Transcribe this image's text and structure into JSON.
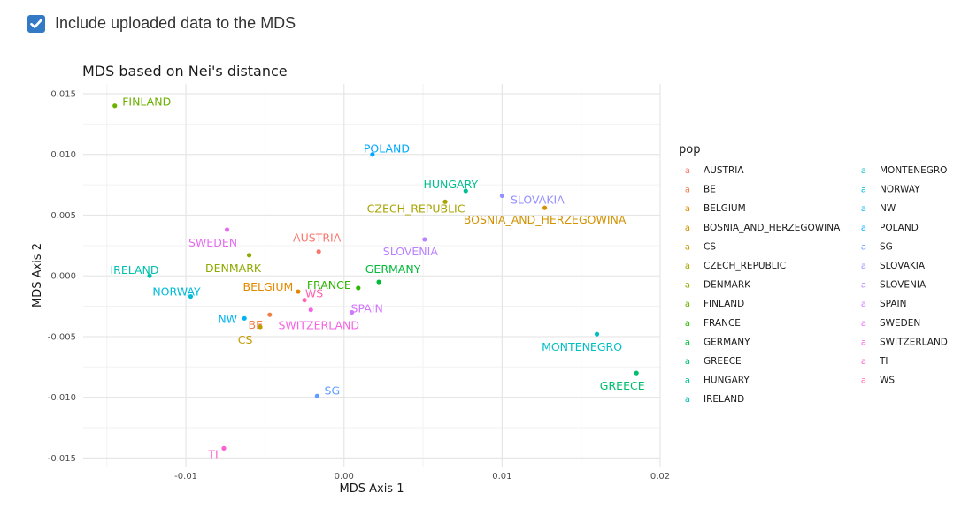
{
  "options": {
    "include_uploaded_label": "Include uploaded data to the MDS",
    "include_uploaded_checked": true
  },
  "chart_data": {
    "type": "scatter",
    "title": "MDS based on Nei's distance",
    "xlabel": "MDS Axis 1",
    "ylabel": "MDS Axis 2",
    "xlim": [
      -0.0165,
      0.02
    ],
    "ylim": [
      -0.0157,
      0.0158
    ],
    "x_ticks": [
      -0.01,
      0.0,
      0.01,
      0.02
    ],
    "x_tick_labels": [
      "-0.01",
      "0.00",
      "0.01",
      "0.02"
    ],
    "y_ticks": [
      -0.015,
      -0.01,
      -0.005,
      0.0,
      0.005,
      0.01,
      0.015
    ],
    "y_tick_labels": [
      "-0.015",
      "-0.010",
      "-0.005",
      "0.000",
      "0.005",
      "0.010",
      "0.015"
    ],
    "grid": true,
    "legend_title": "pop",
    "legend_placement": "right",
    "points": [
      {
        "label": "AUSTRIA",
        "x": -0.0016,
        "y": 0.002,
        "color": "#F8766D"
      },
      {
        "label": "BE",
        "x": -0.0047,
        "y": -0.0032,
        "color": "#EF7F49"
      },
      {
        "label": "BELGIUM",
        "x": -0.0029,
        "y": -0.0013,
        "color": "#E38900"
      },
      {
        "label": "BOSNIA_AND_HERZEGOWINA",
        "x": 0.0127,
        "y": 0.0056,
        "color": "#D39200"
      },
      {
        "label": "CS",
        "x": -0.0053,
        "y": -0.0042,
        "color": "#C09B00"
      },
      {
        "label": "CZECH_REPUBLIC",
        "x": 0.0064,
        "y": 0.0061,
        "color": "#A9A400"
      },
      {
        "label": "DENMARK",
        "x": -0.006,
        "y": 0.0017,
        "color": "#8EAB00"
      },
      {
        "label": "FINLAND",
        "x": -0.0145,
        "y": 0.014,
        "color": "#6BB100"
      },
      {
        "label": "FRANCE",
        "x": 0.0009,
        "y": -0.001,
        "color": "#2EB600"
      },
      {
        "label": "GERMANY",
        "x": 0.0022,
        "y": -0.0005,
        "color": "#00BA38"
      },
      {
        "label": "GREECE",
        "x": 0.0185,
        "y": -0.008,
        "color": "#00BD6D"
      },
      {
        "label": "HUNGARY",
        "x": 0.0077,
        "y": 0.007,
        "color": "#00BF91"
      },
      {
        "label": "IRELAND",
        "x": -0.0123,
        "y": 0.0,
        "color": "#00C0AF"
      },
      {
        "label": "MONTENEGRO",
        "x": 0.016,
        "y": -0.0048,
        "color": "#00BFC4"
      },
      {
        "label": "NORWAY",
        "x": -0.0097,
        "y": -0.0017,
        "color": "#00BBD9"
      },
      {
        "label": "NW",
        "x": -0.0063,
        "y": -0.0035,
        "color": "#00B4EF"
      },
      {
        "label": "POLAND",
        "x": 0.0018,
        "y": 0.01,
        "color": "#00A9FF"
      },
      {
        "label": "SG",
        "x": -0.0017,
        "y": -0.0099,
        "color": "#619CFF"
      },
      {
        "label": "SLOVAKIA",
        "x": 0.01,
        "y": 0.0066,
        "color": "#9590FF"
      },
      {
        "label": "SLOVENIA",
        "x": 0.0051,
        "y": 0.003,
        "color": "#B983FF"
      },
      {
        "label": "SPAIN",
        "x": 0.0005,
        "y": -0.003,
        "color": "#D177FF"
      },
      {
        "label": "SWEDEN",
        "x": -0.0074,
        "y": 0.0038,
        "color": "#E76BF3"
      },
      {
        "label": "SWITZERLAND",
        "x": -0.0021,
        "y": -0.0028,
        "color": "#F564E3"
      },
      {
        "label": "TI",
        "x": -0.0076,
        "y": -0.0142,
        "color": "#FD61D1"
      },
      {
        "label": "WS",
        "x": -0.0025,
        "y": -0.002,
        "color": "#FF64B0"
      }
    ]
  }
}
